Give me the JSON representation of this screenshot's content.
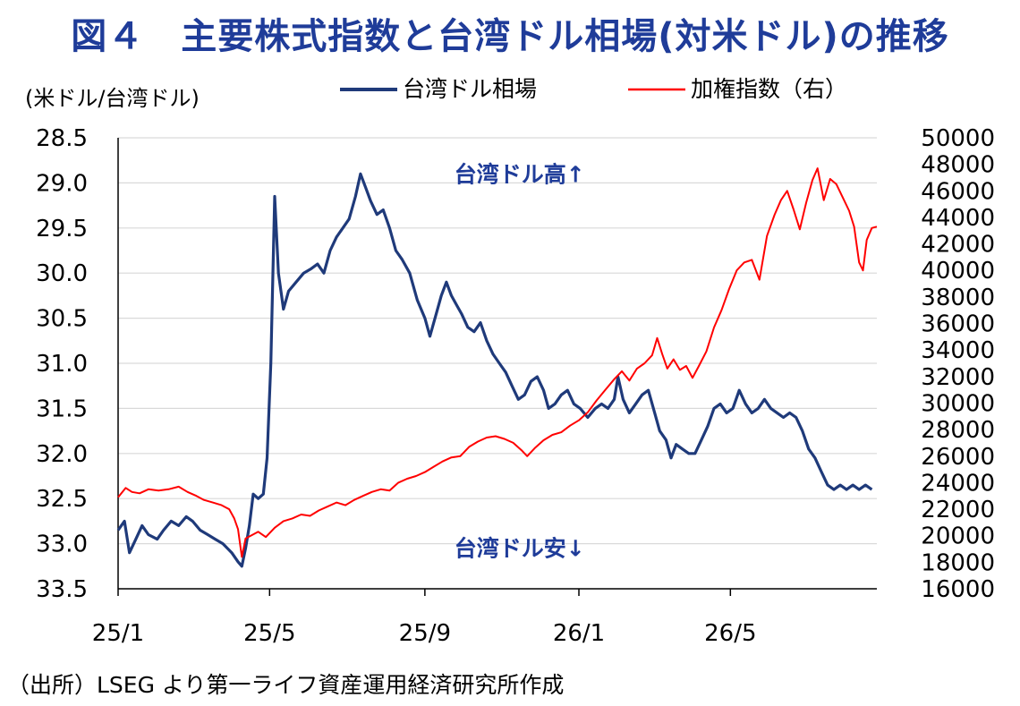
{
  "title": "図４　主要株式指数と台湾ドル相場(対米ドル)の推移",
  "source": "（出所）LSEG より第一ライフ資産運用経済研究所作成",
  "chart_data": {
    "type": "line",
    "left_axis_unit": "(米ドル/台湾ドル)",
    "left_axis_inverted": true,
    "ylim_left": [
      28.5,
      33.5
    ],
    "yticks_left": [
      "28.5",
      "29.0",
      "29.5",
      "30.0",
      "30.5",
      "31.0",
      "31.5",
      "32.0",
      "32.5",
      "33.0",
      "33.5"
    ],
    "ylim_right": [
      16000,
      50000
    ],
    "yticks_right": [
      "50000",
      "48000",
      "46000",
      "44000",
      "42000",
      "40000",
      "38000",
      "36000",
      "34000",
      "32000",
      "30000",
      "28000",
      "26000",
      "24000",
      "22000",
      "20000",
      "18000",
      "16000"
    ],
    "xlim": [
      "2025-01-01",
      "2026-08-25"
    ],
    "xticks": [
      {
        "label": "25/1",
        "date": "2025-01-01"
      },
      {
        "label": "25/5",
        "date": "2025-05-01"
      },
      {
        "label": "25/9",
        "date": "2025-09-01"
      },
      {
        "label": "26/1",
        "date": "2026-01-01"
      },
      {
        "label": "26/5",
        "date": "2026-05-01"
      }
    ],
    "grid": "horizontal",
    "legend_position": "top",
    "annotations": [
      {
        "text": "台湾ドル高↑",
        "date": "2025-11-15",
        "y_left": 28.9
      },
      {
        "text": "台湾ドル安↓",
        "date": "2025-11-15",
        "y_left": 33.05
      }
    ],
    "series": [
      {
        "name": "台湾ドル相場",
        "axis": "left",
        "color": "#1f3a7a",
        "points": [
          [
            "2025-01-01",
            32.85
          ],
          [
            "2025-01-06",
            32.75
          ],
          [
            "2025-01-10",
            33.1
          ],
          [
            "2025-01-15",
            32.95
          ],
          [
            "2025-01-20",
            32.8
          ],
          [
            "2025-01-25",
            32.9
          ],
          [
            "2025-02-01",
            32.95
          ],
          [
            "2025-02-06",
            32.85
          ],
          [
            "2025-02-12",
            32.75
          ],
          [
            "2025-02-18",
            32.8
          ],
          [
            "2025-02-24",
            32.7
          ],
          [
            "2025-03-01",
            32.75
          ],
          [
            "2025-03-07",
            32.85
          ],
          [
            "2025-03-13",
            32.9
          ],
          [
            "2025-03-19",
            32.95
          ],
          [
            "2025-03-25",
            33.0
          ],
          [
            "2025-04-01",
            33.1
          ],
          [
            "2025-04-06",
            33.2
          ],
          [
            "2025-04-09",
            33.25
          ],
          [
            "2025-04-12",
            33.05
          ],
          [
            "2025-04-15",
            32.8
          ],
          [
            "2025-04-18",
            32.45
          ],
          [
            "2025-04-22",
            32.5
          ],
          [
            "2025-04-26",
            32.45
          ],
          [
            "2025-04-29",
            32.05
          ],
          [
            "2025-05-02",
            31.0
          ],
          [
            "2025-05-05",
            29.15
          ],
          [
            "2025-05-08",
            30.0
          ],
          [
            "2025-05-12",
            30.4
          ],
          [
            "2025-05-16",
            30.2
          ],
          [
            "2025-05-22",
            30.1
          ],
          [
            "2025-05-28",
            30.0
          ],
          [
            "2025-06-03",
            29.95
          ],
          [
            "2025-06-08",
            29.9
          ],
          [
            "2025-06-13",
            30.0
          ],
          [
            "2025-06-18",
            29.75
          ],
          [
            "2025-06-23",
            29.6
          ],
          [
            "2025-06-28",
            29.5
          ],
          [
            "2025-07-03",
            29.4
          ],
          [
            "2025-07-08",
            29.15
          ],
          [
            "2025-07-12",
            28.9
          ],
          [
            "2025-07-16",
            29.05
          ],
          [
            "2025-07-20",
            29.2
          ],
          [
            "2025-07-25",
            29.35
          ],
          [
            "2025-07-30",
            29.3
          ],
          [
            "2025-08-04",
            29.5
          ],
          [
            "2025-08-09",
            29.75
          ],
          [
            "2025-08-14",
            29.85
          ],
          [
            "2025-08-20",
            30.0
          ],
          [
            "2025-08-26",
            30.3
          ],
          [
            "2025-09-01",
            30.5
          ],
          [
            "2025-09-05",
            30.7
          ],
          [
            "2025-09-10",
            30.45
          ],
          [
            "2025-09-14",
            30.25
          ],
          [
            "2025-09-18",
            30.1
          ],
          [
            "2025-09-22",
            30.25
          ],
          [
            "2025-09-26",
            30.35
          ],
          [
            "2025-09-30",
            30.45
          ],
          [
            "2025-10-05",
            30.6
          ],
          [
            "2025-10-10",
            30.65
          ],
          [
            "2025-10-15",
            30.55
          ],
          [
            "2025-10-20",
            30.75
          ],
          [
            "2025-10-25",
            30.9
          ],
          [
            "2025-10-30",
            31.0
          ],
          [
            "2025-11-04",
            31.1
          ],
          [
            "2025-11-09",
            31.25
          ],
          [
            "2025-11-14",
            31.4
          ],
          [
            "2025-11-19",
            31.35
          ],
          [
            "2025-11-24",
            31.2
          ],
          [
            "2025-11-29",
            31.15
          ],
          [
            "2025-12-04",
            31.3
          ],
          [
            "2025-12-08",
            31.5
          ],
          [
            "2025-12-13",
            31.45
          ],
          [
            "2025-12-18",
            31.35
          ],
          [
            "2025-12-23",
            31.3
          ],
          [
            "2025-12-28",
            31.45
          ],
          [
            "2026-01-02",
            31.5
          ],
          [
            "2026-01-08",
            31.6
          ],
          [
            "2026-01-14",
            31.5
          ],
          [
            "2026-01-19",
            31.45
          ],
          [
            "2026-01-24",
            31.5
          ],
          [
            "2026-01-29",
            31.4
          ],
          [
            "2026-02-01",
            31.15
          ],
          [
            "2026-02-05",
            31.4
          ],
          [
            "2026-02-10",
            31.55
          ],
          [
            "2026-02-15",
            31.45
          ],
          [
            "2026-02-20",
            31.35
          ],
          [
            "2026-02-25",
            31.3
          ],
          [
            "2026-03-02",
            31.55
          ],
          [
            "2026-03-06",
            31.75
          ],
          [
            "2026-03-11",
            31.85
          ],
          [
            "2026-03-15",
            32.05
          ],
          [
            "2026-03-19",
            31.9
          ],
          [
            "2026-03-24",
            31.95
          ],
          [
            "2026-03-29",
            32.0
          ],
          [
            "2026-04-03",
            32.0
          ],
          [
            "2026-04-08",
            31.85
          ],
          [
            "2026-04-13",
            31.7
          ],
          [
            "2026-04-18",
            31.5
          ],
          [
            "2026-04-23",
            31.45
          ],
          [
            "2026-04-28",
            31.55
          ],
          [
            "2026-05-03",
            31.5
          ],
          [
            "2026-05-08",
            31.3
          ],
          [
            "2026-05-13",
            31.45
          ],
          [
            "2026-05-18",
            31.55
          ],
          [
            "2026-05-23",
            31.5
          ],
          [
            "2026-05-28",
            31.4
          ],
          [
            "2026-06-02",
            31.5
          ],
          [
            "2026-06-07",
            31.55
          ],
          [
            "2026-06-12",
            31.6
          ],
          [
            "2026-06-17",
            31.55
          ],
          [
            "2026-06-22",
            31.6
          ],
          [
            "2026-06-27",
            31.75
          ],
          [
            "2026-07-02",
            31.95
          ],
          [
            "2026-07-07",
            32.05
          ],
          [
            "2026-07-12",
            32.2
          ],
          [
            "2026-07-17",
            32.35
          ],
          [
            "2026-07-22",
            32.4
          ],
          [
            "2026-07-27",
            32.35
          ],
          [
            "2026-08-01",
            32.4
          ],
          [
            "2026-08-06",
            32.35
          ],
          [
            "2026-08-11",
            32.4
          ],
          [
            "2026-08-16",
            32.35
          ],
          [
            "2026-08-21",
            32.4
          ]
        ]
      },
      {
        "name": "加権指数（右）",
        "axis": "right",
        "color": "#ff0000",
        "points": [
          [
            "2025-01-01",
            22900
          ],
          [
            "2025-01-07",
            23600
          ],
          [
            "2025-01-12",
            23300
          ],
          [
            "2025-01-18",
            23200
          ],
          [
            "2025-01-25",
            23500
          ],
          [
            "2025-02-02",
            23400
          ],
          [
            "2025-02-10",
            23500
          ],
          [
            "2025-02-18",
            23700
          ],
          [
            "2025-02-25",
            23300
          ],
          [
            "2025-03-04",
            23000
          ],
          [
            "2025-03-10",
            22700
          ],
          [
            "2025-03-17",
            22500
          ],
          [
            "2025-03-24",
            22300
          ],
          [
            "2025-03-30",
            22000
          ],
          [
            "2025-04-03",
            21300
          ],
          [
            "2025-04-06",
            20500
          ],
          [
            "2025-04-09",
            18400
          ],
          [
            "2025-04-12",
            19800
          ],
          [
            "2025-04-16",
            20000
          ],
          [
            "2025-04-22",
            20300
          ],
          [
            "2025-04-28",
            19900
          ],
          [
            "2025-05-05",
            20600
          ],
          [
            "2025-05-12",
            21100
          ],
          [
            "2025-05-19",
            21300
          ],
          [
            "2025-05-26",
            21600
          ],
          [
            "2025-06-02",
            21500
          ],
          [
            "2025-06-09",
            21900
          ],
          [
            "2025-06-16",
            22200
          ],
          [
            "2025-06-23",
            22500
          ],
          [
            "2025-06-30",
            22300
          ],
          [
            "2025-07-07",
            22700
          ],
          [
            "2025-07-14",
            23000
          ],
          [
            "2025-07-21",
            23300
          ],
          [
            "2025-07-28",
            23500
          ],
          [
            "2025-08-04",
            23400
          ],
          [
            "2025-08-11",
            24000
          ],
          [
            "2025-08-18",
            24300
          ],
          [
            "2025-08-25",
            24500
          ],
          [
            "2025-09-01",
            24800
          ],
          [
            "2025-09-08",
            25200
          ],
          [
            "2025-09-15",
            25600
          ],
          [
            "2025-09-22",
            25900
          ],
          [
            "2025-09-29",
            26000
          ],
          [
            "2025-10-06",
            26700
          ],
          [
            "2025-10-13",
            27100
          ],
          [
            "2025-10-20",
            27400
          ],
          [
            "2025-10-27",
            27500
          ],
          [
            "2025-11-03",
            27300
          ],
          [
            "2025-11-10",
            27000
          ],
          [
            "2025-11-17",
            26400
          ],
          [
            "2025-11-21",
            26000
          ],
          [
            "2025-11-27",
            26600
          ],
          [
            "2025-12-04",
            27200
          ],
          [
            "2025-12-11",
            27600
          ],
          [
            "2025-12-18",
            27800
          ],
          [
            "2025-12-25",
            28300
          ],
          [
            "2026-01-01",
            28700
          ],
          [
            "2026-01-08",
            29300
          ],
          [
            "2026-01-15",
            30200
          ],
          [
            "2026-01-22",
            31000
          ],
          [
            "2026-01-29",
            31800
          ],
          [
            "2026-02-04",
            32400
          ],
          [
            "2026-02-10",
            31700
          ],
          [
            "2026-02-16",
            32600
          ],
          [
            "2026-02-22",
            33000
          ],
          [
            "2026-02-28",
            33600
          ],
          [
            "2026-03-04",
            34900
          ],
          [
            "2026-03-08",
            33700
          ],
          [
            "2026-03-12",
            32600
          ],
          [
            "2026-03-17",
            33300
          ],
          [
            "2026-03-22",
            32500
          ],
          [
            "2026-03-27",
            32800
          ],
          [
            "2026-04-01",
            31900
          ],
          [
            "2026-04-06",
            32800
          ],
          [
            "2026-04-12",
            33900
          ],
          [
            "2026-04-18",
            35700
          ],
          [
            "2026-04-24",
            37000
          ],
          [
            "2026-04-30",
            38600
          ],
          [
            "2026-05-06",
            40000
          ],
          [
            "2026-05-12",
            40600
          ],
          [
            "2026-05-18",
            40800
          ],
          [
            "2026-05-24",
            39300
          ],
          [
            "2026-05-30",
            42600
          ],
          [
            "2026-06-05",
            44200
          ],
          [
            "2026-06-10",
            45300
          ],
          [
            "2026-06-15",
            46000
          ],
          [
            "2026-06-20",
            44600
          ],
          [
            "2026-06-25",
            43100
          ],
          [
            "2026-06-30",
            45100
          ],
          [
            "2026-07-05",
            46800
          ],
          [
            "2026-07-09",
            47700
          ],
          [
            "2026-07-14",
            45300
          ],
          [
            "2026-07-19",
            46900
          ],
          [
            "2026-07-24",
            46500
          ],
          [
            "2026-07-29",
            45500
          ],
          [
            "2026-08-03",
            44500
          ],
          [
            "2026-08-07",
            43300
          ],
          [
            "2026-08-11",
            40600
          ],
          [
            "2026-08-14",
            40000
          ],
          [
            "2026-08-17",
            42300
          ],
          [
            "2026-08-21",
            43200
          ],
          [
            "2026-08-25",
            43300
          ]
        ]
      }
    ]
  }
}
